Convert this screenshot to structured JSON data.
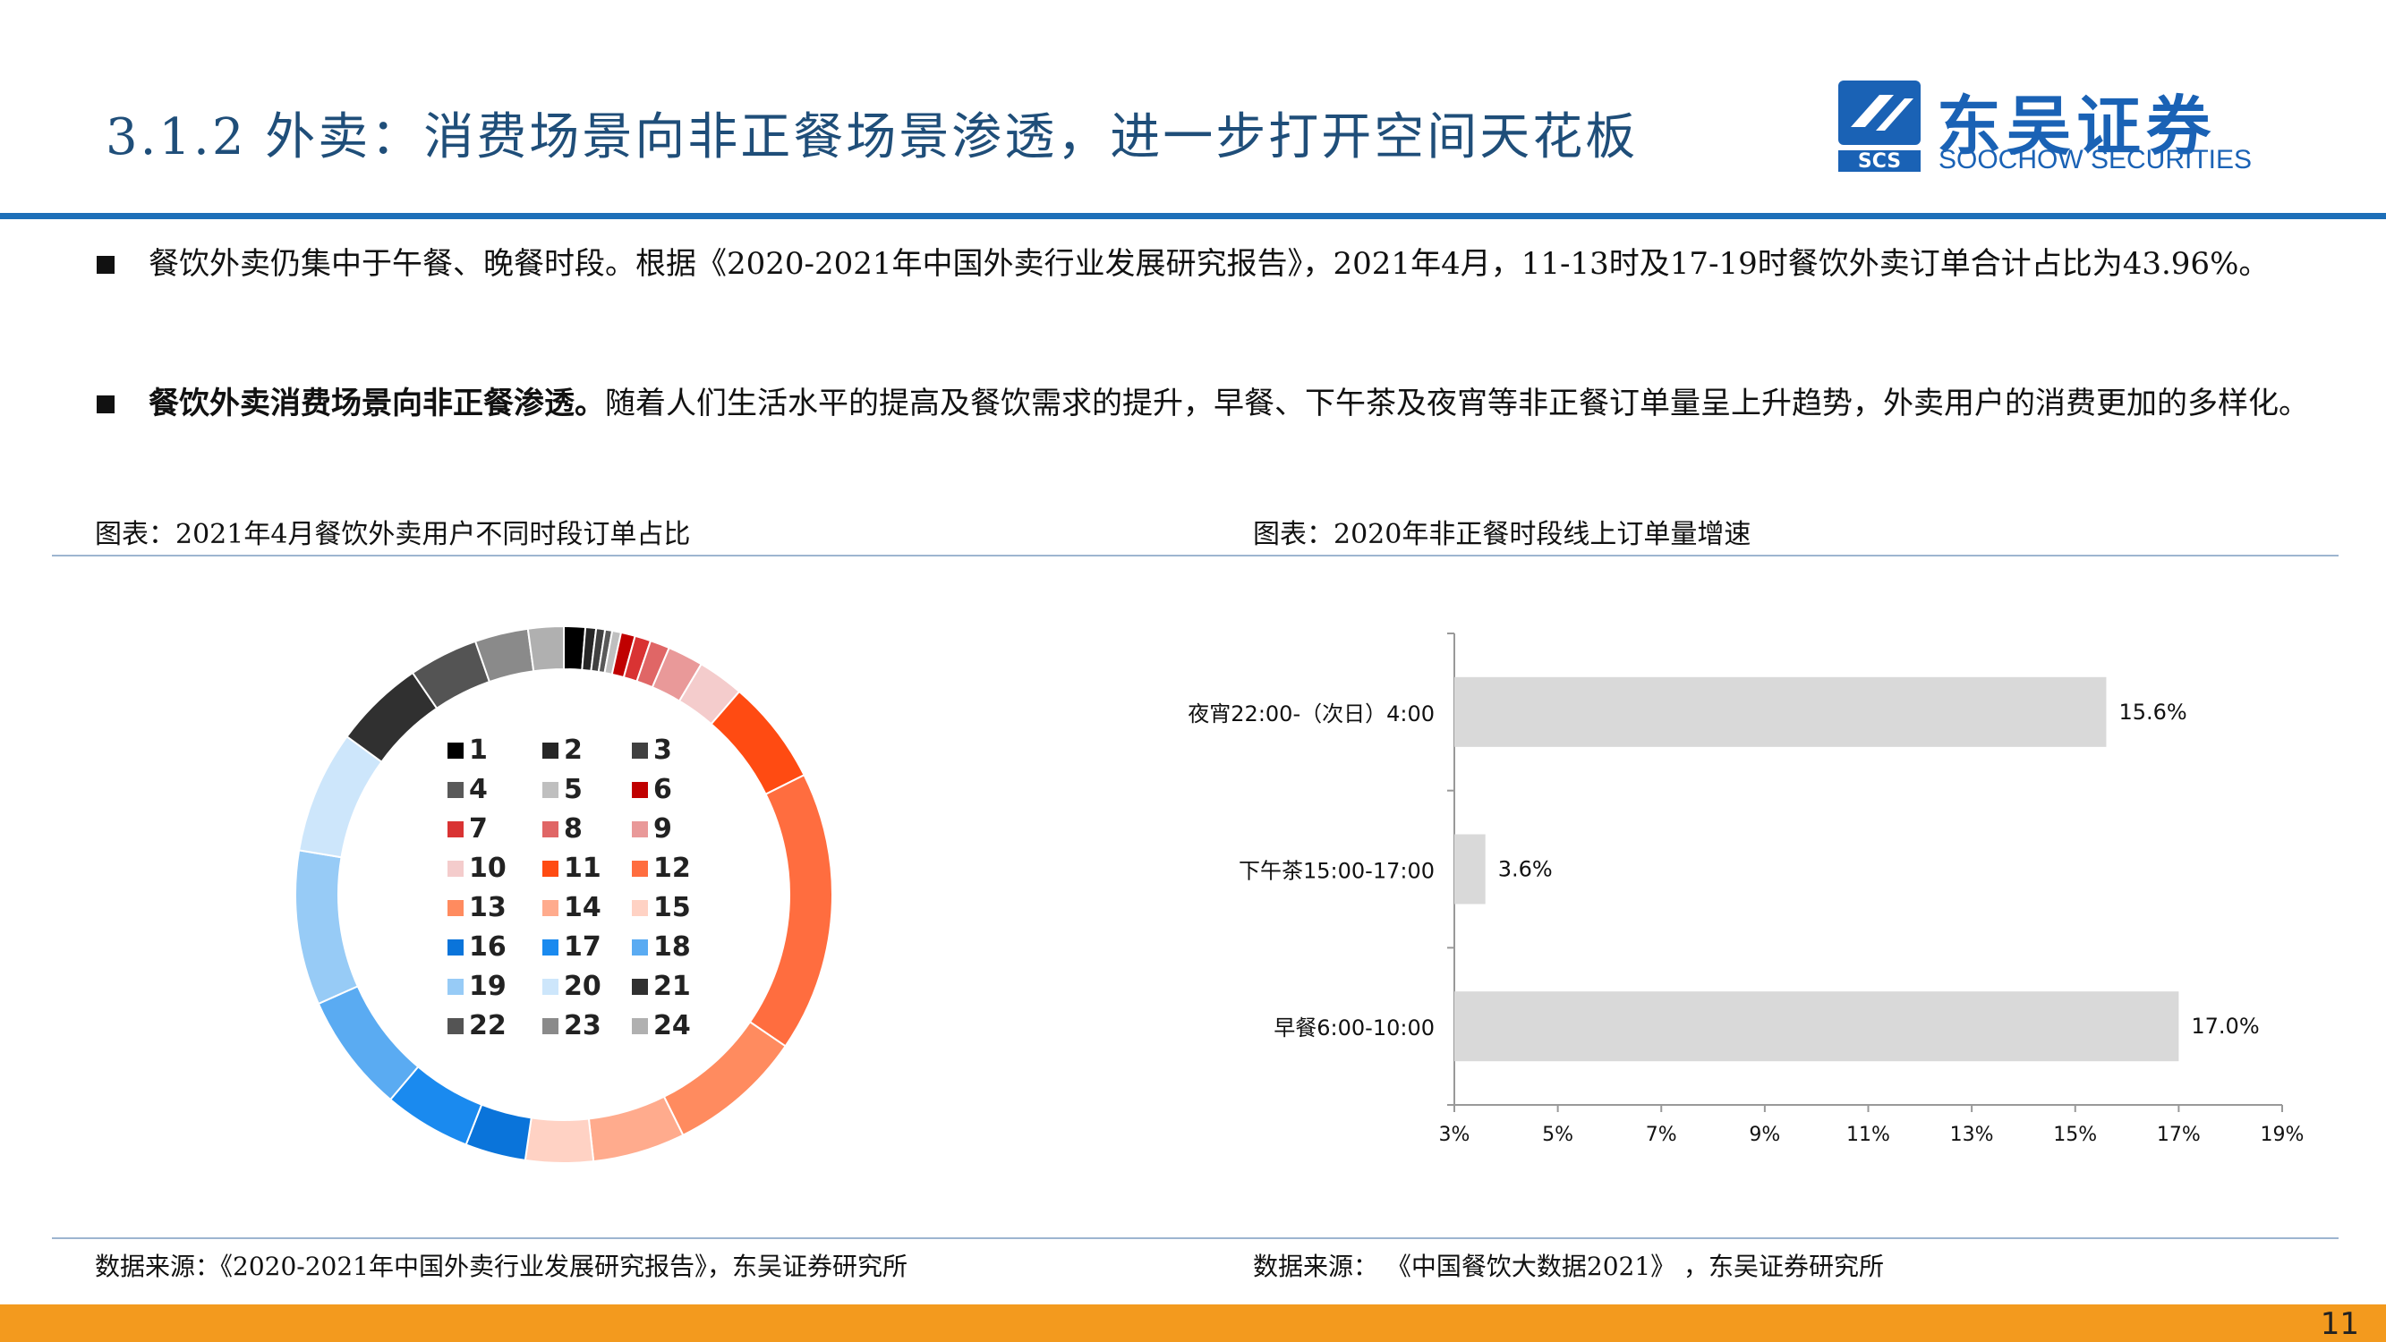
{
  "header": {
    "title": "3.1.2 外卖：消费场景向非正餐场景渗透，进一步打开空间天花板",
    "logo_cn": "东吴证券",
    "logo_en": "SOOCHOW SECURITIES",
    "logo_mark_text": "SCS",
    "brand_color": "#1a62b5"
  },
  "bullets": [
    {
      "bold": "",
      "text": "餐饮外卖仍集中于午餐、晚餐时段。根据《2020-2021年中国外卖行业发展研究报告》，2021年4月，11-13时及17-19时餐饮外卖订单合计占比为43.96%。"
    },
    {
      "bold": "餐饮外卖消费场景向非正餐渗透。",
      "text": "随着人们生活水平的提高及餐饮需求的提升，早餐、下午茶及夜宵等非正餐订单量呈上升趋势，外卖用户的消费更加的多样化。"
    }
  ],
  "left_caption": "图表：2021年4月餐饮外卖用户不同时段订单占比",
  "right_caption": "图表：2020年非正餐时段线上订单量增速",
  "left_source": "数据来源：《2020-2021年中国外卖行业发展研究报告》，东吴证券研究所",
  "right_source": "数据来源：  《中国餐饮大数据2021》  ，东吴证券研究所",
  "page_number": "11",
  "chart_data": [
    {
      "type": "pie",
      "variant": "donut",
      "categories": [
        "1",
        "2",
        "3",
        "4",
        "5",
        "6",
        "7",
        "8",
        "9",
        "10",
        "11",
        "12",
        "13",
        "14",
        "15",
        "16",
        "17",
        "18",
        "19",
        "20",
        "21",
        "22",
        "23",
        "24"
      ],
      "values": [
        1.2,
        0.6,
        0.5,
        0.4,
        0.5,
        0.8,
        0.9,
        1.1,
        2.0,
        2.6,
        5.9,
        15.8,
        7.6,
        5.2,
        3.8,
        3.4,
        4.9,
        6.7,
        8.7,
        6.9,
        5.1,
        3.9,
        3.0,
        2.0
      ],
      "colors": [
        "#000000",
        "#262626",
        "#404040",
        "#595959",
        "#bfbfbf",
        "#c00000",
        "#d93333",
        "#e06666",
        "#e99999",
        "#f4cccc",
        "#ff4b12",
        "#ff6d3f",
        "#ff8b5f",
        "#ffab8d",
        "#ffd2c4",
        "#0a74da",
        "#1a8aef",
        "#5aabf2",
        "#97cbf6",
        "#cde6fb",
        "#303030",
        "#545454",
        "#8a8a8a",
        "#b0b0b0"
      ],
      "legend": "center",
      "annotations": [
        "11-13时及17-19时合计占比43.96%"
      ]
    },
    {
      "type": "bar",
      "orientation": "horizontal",
      "categories": [
        "夜宵22:00-（次日）4:00",
        "下午茶15:00-17:00",
        "早餐6:00-10:00"
      ],
      "values": [
        15.6,
        3.6,
        17.0
      ],
      "value_labels": [
        "15.6%",
        "3.6%",
        "17.0%"
      ],
      "xlim": [
        3,
        19
      ],
      "xticks": [
        "3%",
        "5%",
        "7%",
        "9%",
        "11%",
        "13%",
        "15%",
        "17%",
        "19%"
      ],
      "bar_color": "#d9d9d9",
      "grid": false
    }
  ]
}
